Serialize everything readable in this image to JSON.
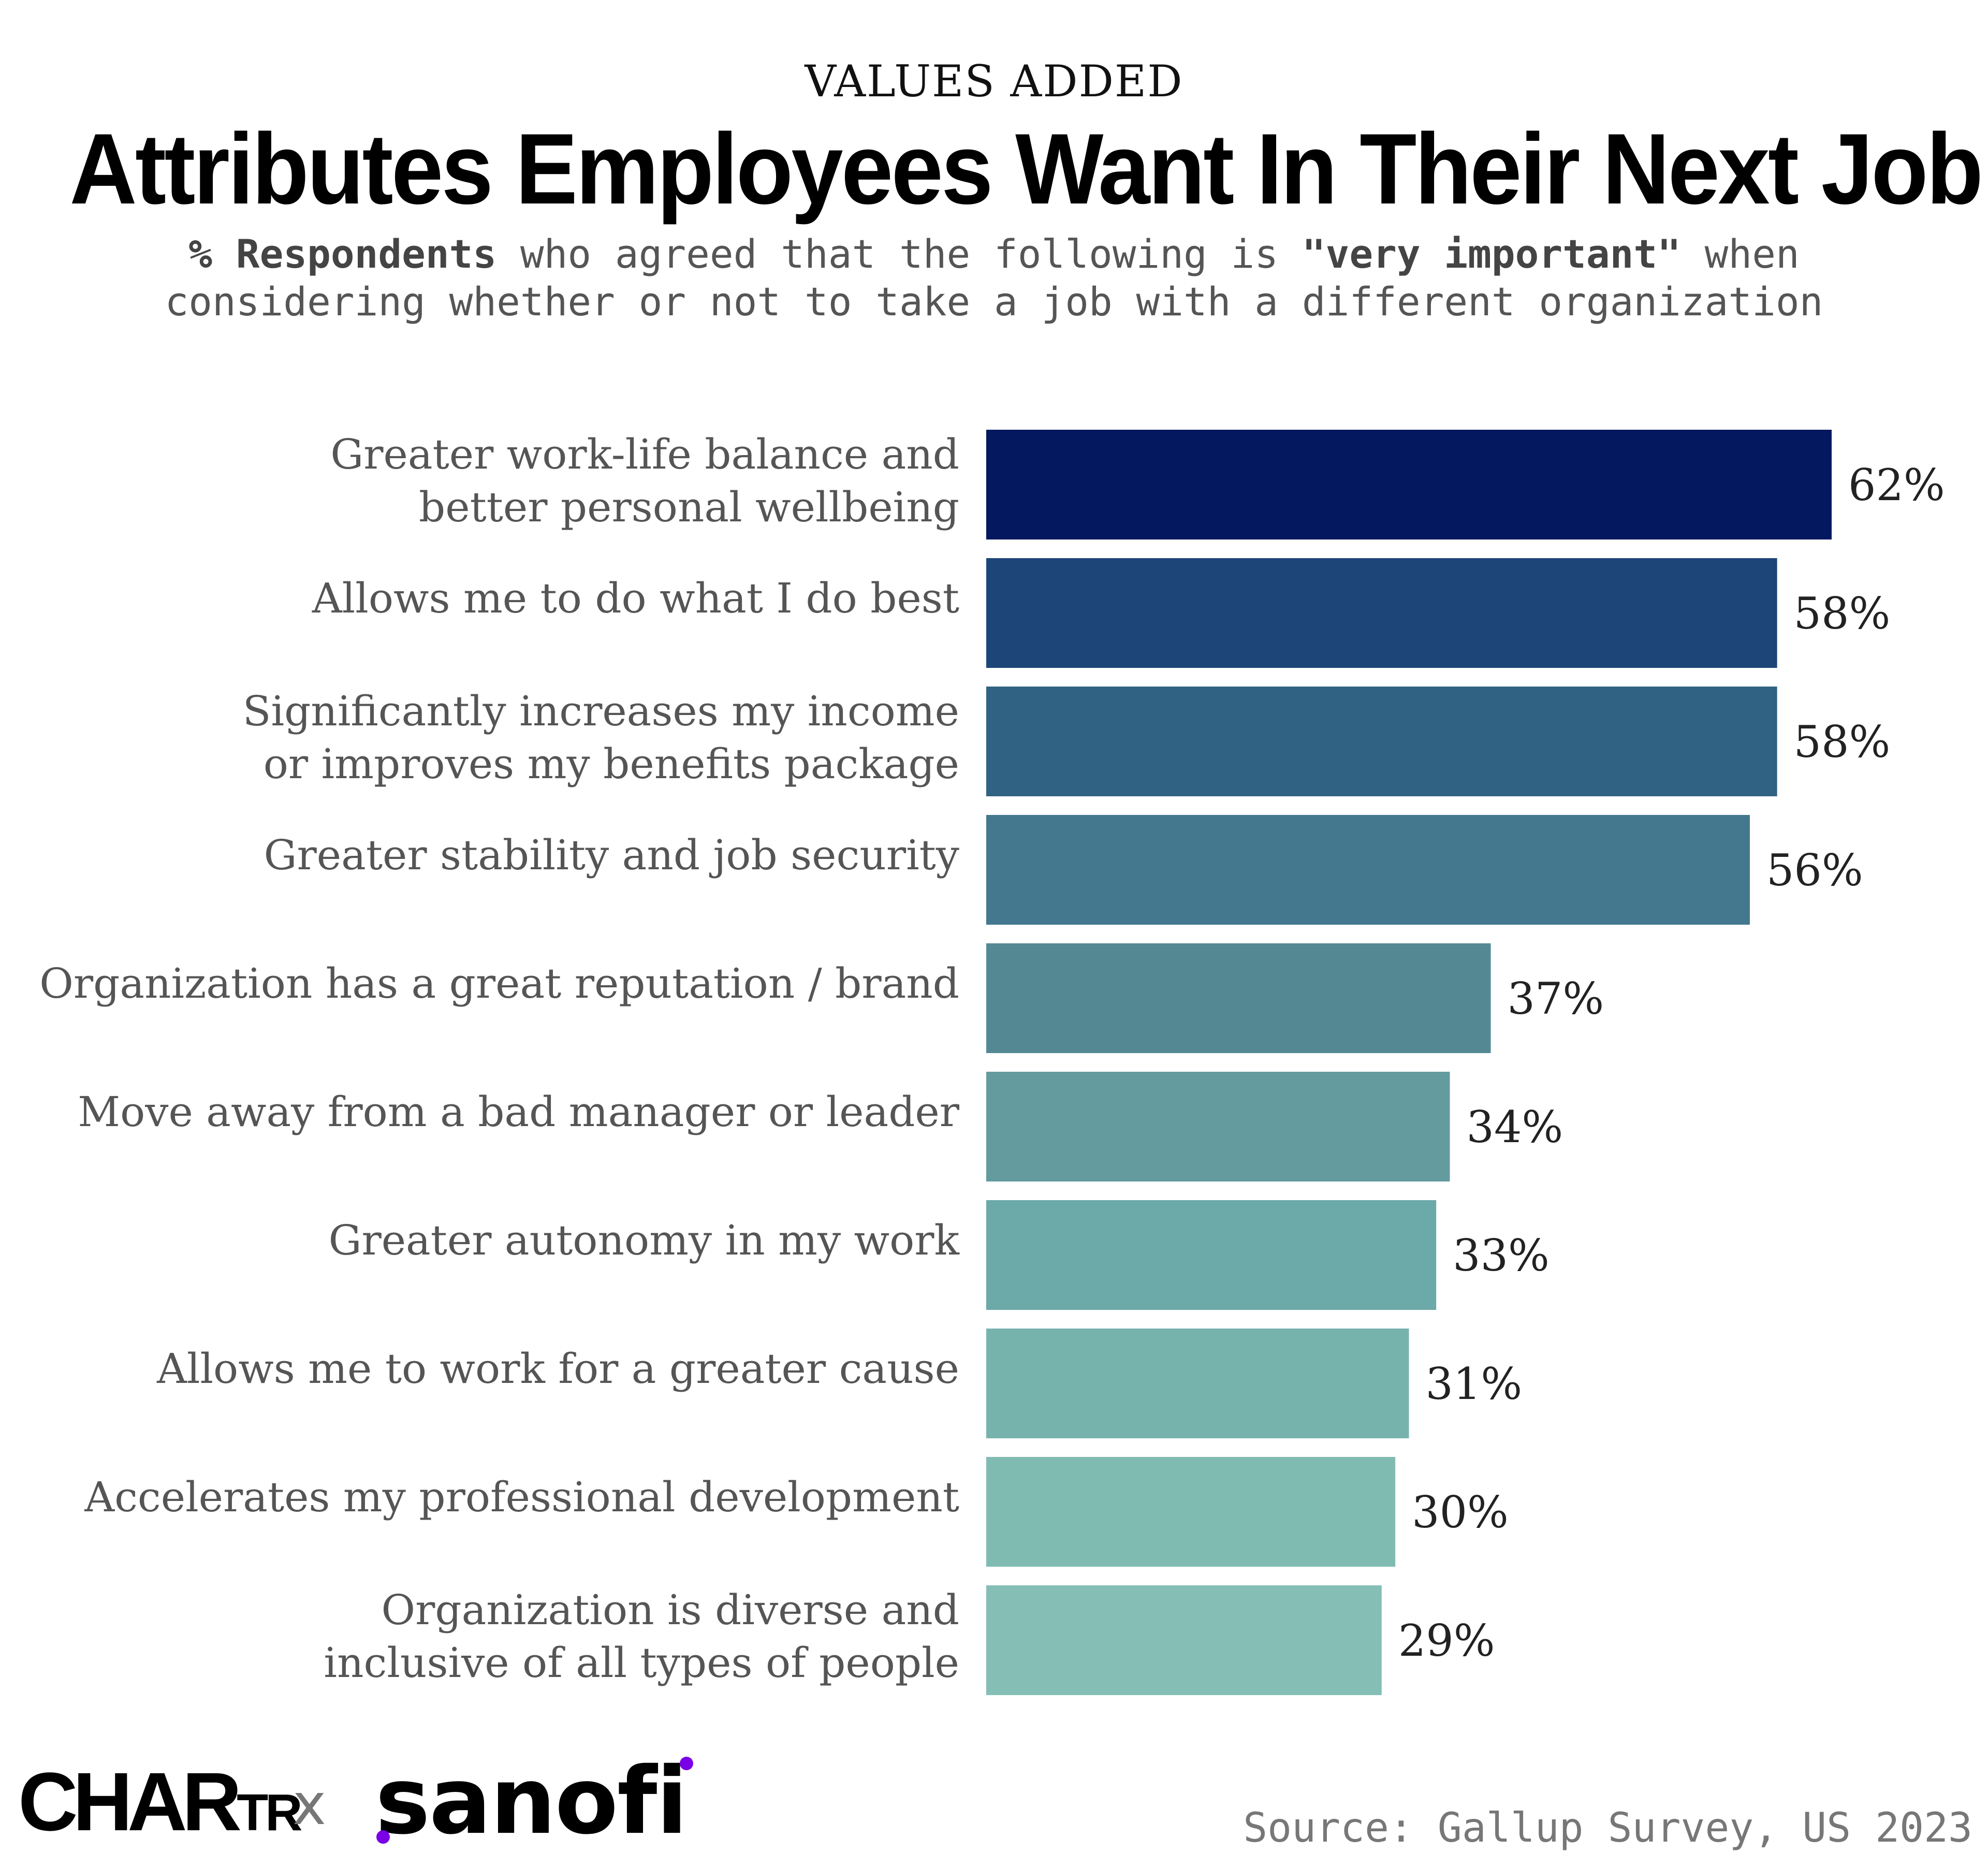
{
  "header": {
    "kicker": "VALUES ADDED",
    "title": "Attributes Employees Want In Their Next Job",
    "subtitle_bold_1": "% Respondents",
    "subtitle_text_1": " who agreed that the following is ",
    "subtitle_bold_2": "\"very important\"",
    "subtitle_text_2": " when\nconsidering whether or not to take a job with a different organization"
  },
  "chart_data": {
    "type": "bar",
    "orientation": "horizontal",
    "categories": [
      [
        "Greater work-life balance and",
        "better personal wellbeing"
      ],
      [
        "Allows me to do what I do best"
      ],
      [
        "Significantly increases my income",
        "or improves my benefits package"
      ],
      [
        "Greater stability and job security"
      ],
      [
        "Organization has a great reputation / brand"
      ],
      [
        "Move away from a bad manager or leader"
      ],
      [
        "Greater autonomy in my work"
      ],
      [
        "Allows me to work for a greater cause"
      ],
      [
        "Accelerates my professional development"
      ],
      [
        "Organization is diverse and",
        "inclusive of all types of people"
      ]
    ],
    "values": [
      62,
      58,
      58,
      56,
      37,
      34,
      33,
      31,
      30,
      29
    ],
    "value_labels": [
      "62%",
      "58%",
      "58%",
      "56%",
      "37%",
      "34%",
      "33%",
      "31%",
      "30%",
      "29%"
    ],
    "colors": [
      "#03185e",
      "#1d4577",
      "#306283",
      "#44788e",
      "#548994",
      "#639b9f",
      "#6ca9a9",
      "#77b3ad",
      "#80bbb1",
      "#84beb4"
    ],
    "xlim": [
      0,
      62
    ],
    "grid": false,
    "legend": false
  },
  "footer": {
    "logo_chartr": "CHARTR",
    "logo_x": "x",
    "logo_sanofi": "sanofi",
    "source": "Source: Gallup Survey, US 2023"
  }
}
